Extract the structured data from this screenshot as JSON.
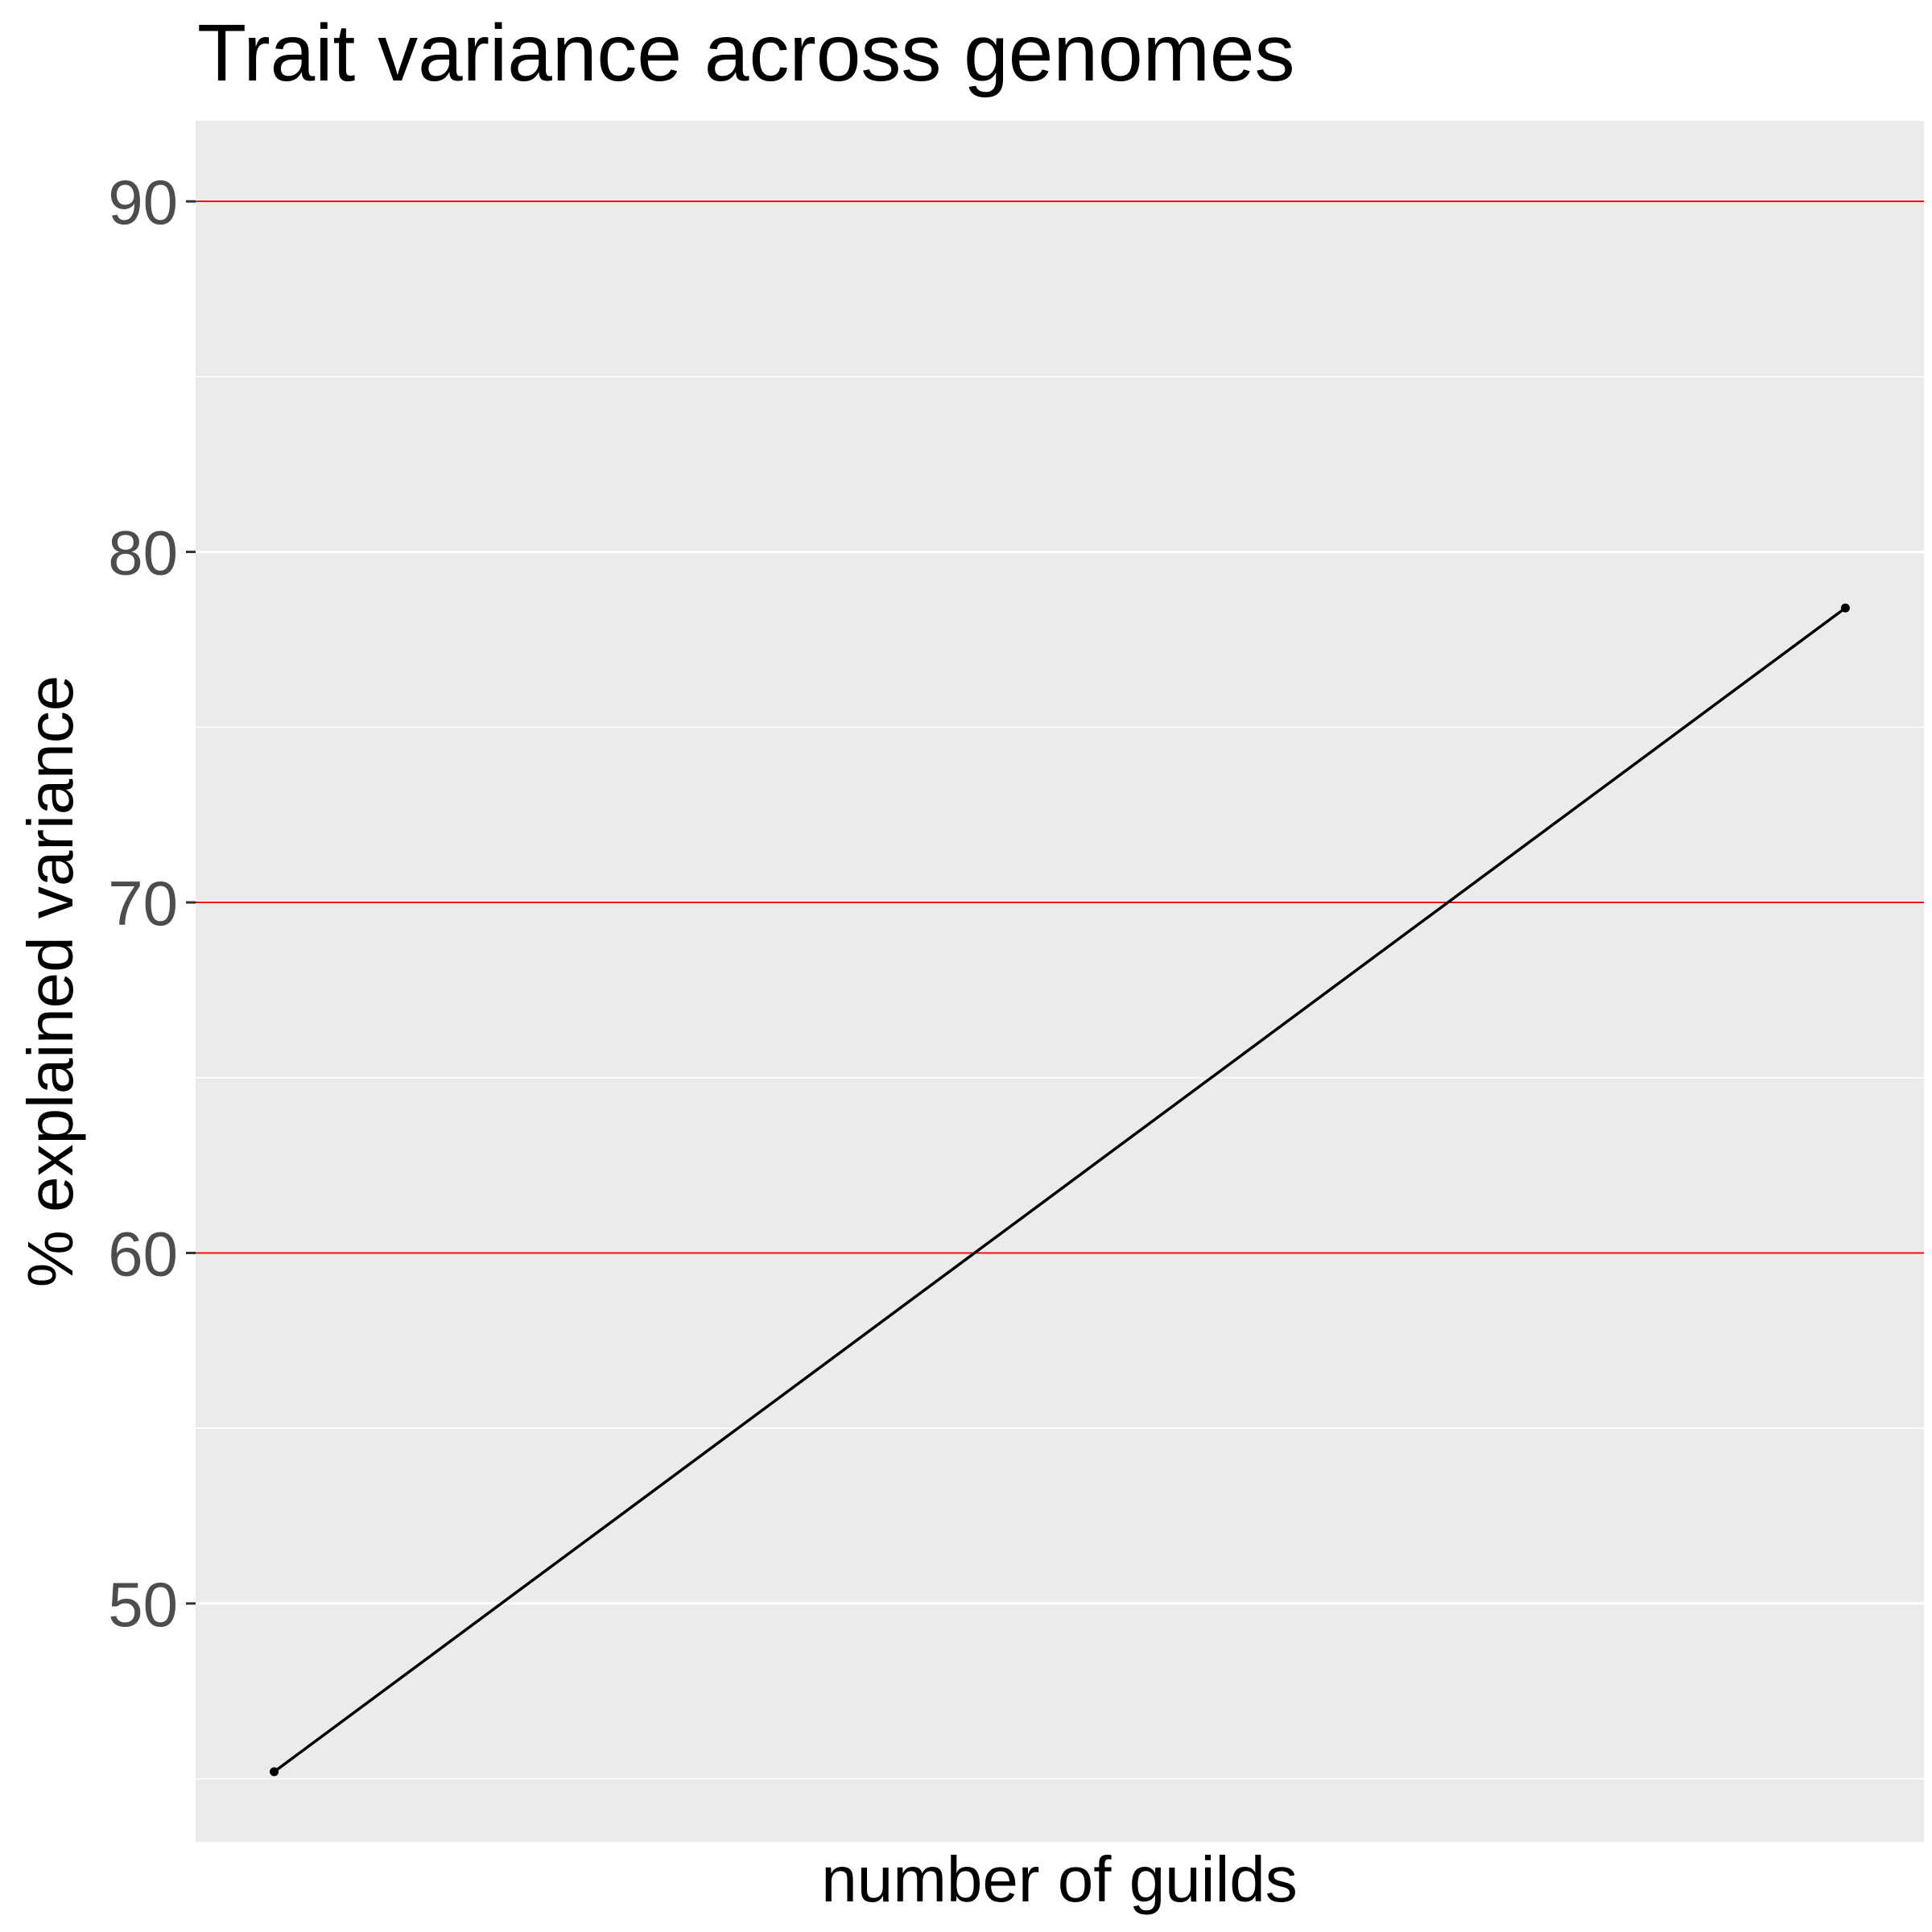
{
  "chart_data": {
    "type": "line",
    "title": "Trait variance across genomes",
    "xlabel": "number of guilds",
    "ylabel": "% explained variance",
    "x": [
      1,
      2
    ],
    "series": [
      {
        "values": [
          45.2,
          78.4
        ]
      }
    ],
    "xlim": [
      0.95,
      2.05
    ],
    "ylim": [
      43.2,
      92.3
    ],
    "yticks": [
      50,
      60,
      70,
      80,
      90
    ],
    "ytick_labels": [
      "50",
      "60",
      "70",
      "80",
      "90"
    ],
    "reference_lines": [
      60,
      70,
      90
    ],
    "grid": true,
    "legend": "none",
    "colors": {
      "panel_background": "#ebebeb",
      "grid": "#ffffff",
      "reference_line": "#ff0000",
      "series": "#000000",
      "tick_label": "#4d4d4d"
    }
  }
}
